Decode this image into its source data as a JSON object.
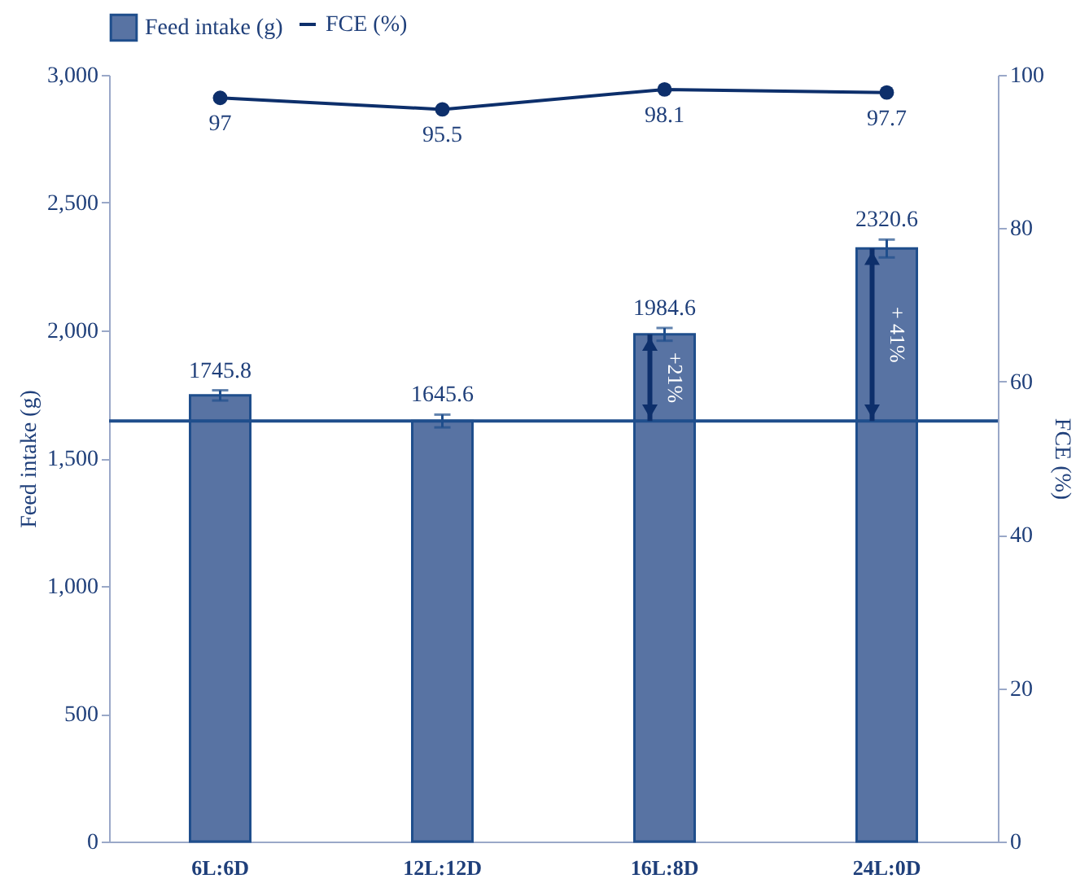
{
  "chart_data": {
    "type": "bar",
    "categories": [
      "6L:6D",
      "12L:12D",
      "16L:8D",
      "24L:0D"
    ],
    "series": [
      {
        "name": "Feed intake (g)",
        "color": "#5873a3",
        "values": [
          1745.8,
          1645.6,
          1984.6,
          2320.6
        ],
        "errors": [
          20,
          25,
          25,
          35
        ]
      },
      {
        "name": "FCE (%)",
        "type": "line",
        "axis": "y2",
        "color": "#0d2f6b",
        "values": [
          97,
          95.5,
          98.1,
          97.7
        ],
        "marker": "circle"
      }
    ],
    "ylabel": "Feed intake (g)",
    "y2label": "FCE (%)",
    "ylim": [
      0,
      3000
    ],
    "yticks": [
      0,
      500,
      {
        "value": 1000,
        "label": "1,000"
      },
      {
        "value": 1500,
        "label": "1,500"
      },
      {
        "value": 2000,
        "label": "2,000"
      },
      {
        "value": 2500,
        "label": "2,500"
      },
      {
        "value": 3000,
        "label": "3,000"
      }
    ],
    "y2lim": [
      0,
      100
    ],
    "y2ticks": [
      0,
      20,
      40,
      60,
      80,
      100
    ],
    "ref_lines": [
      {
        "axis": "y",
        "value": 1645.6,
        "color": "#1f4e8c"
      }
    ],
    "annotations": [
      {
        "text": "+21%",
        "x": "16L:8D",
        "y": 1984.6
      },
      {
        "text": "+ 41%",
        "x": "24L:0D",
        "y": 2320.6
      }
    ],
    "data_labels": true,
    "legend": "top",
    "grid": false
  }
}
